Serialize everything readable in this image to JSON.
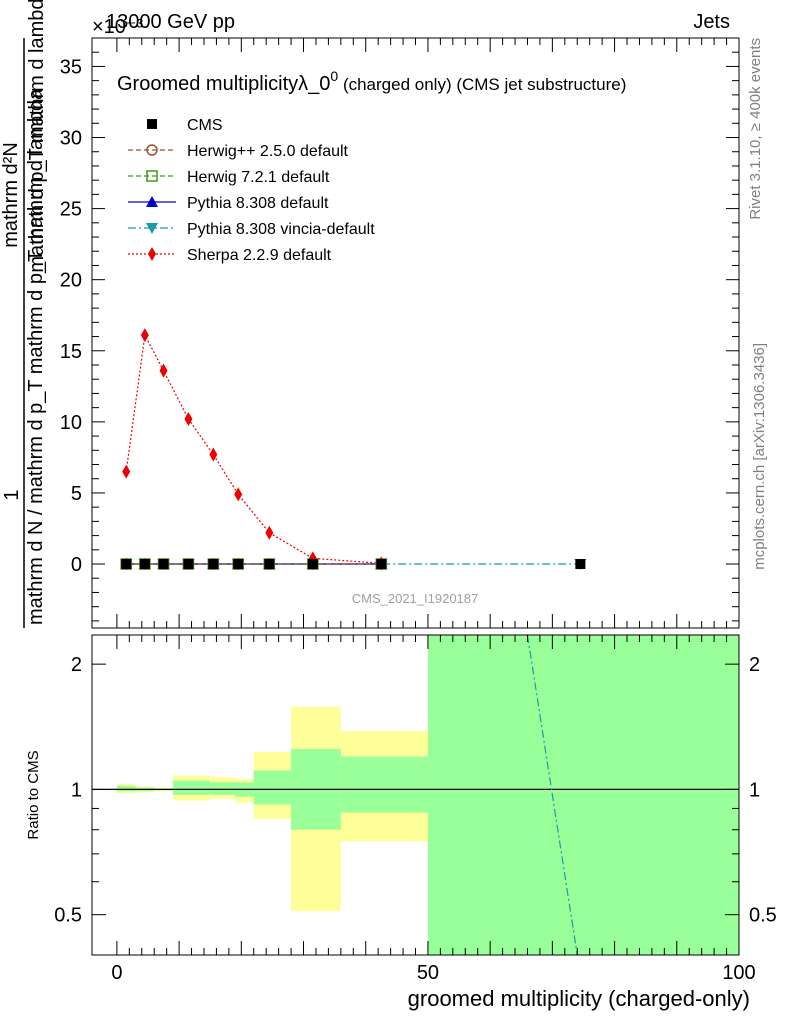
{
  "header": {
    "left": "13000 GeV pp",
    "right": "Jets",
    "exponent_label": "×10⁻³"
  },
  "side_text": {
    "top": "Rivet 3.1.10, ≥ 400k events",
    "bottom": "mcplots.cern.ch [arXiv:1306.3436]"
  },
  "colors": {
    "cms": "#000000",
    "herwigpp": "#a0522d",
    "herwig7": "#3a9a1a",
    "pythia": "#0000cc",
    "vincia": "#1a9aaa",
    "sherpa": "#ee0000",
    "band_yellow": "#ffff99",
    "band_green": "#99ff99"
  },
  "chart_data": [
    {
      "type": "line",
      "title": "Groomed multiplicity λ_0⁰ (charged only) (CMS jet substructure)",
      "title_main": "Groomed multiplicityλ_0",
      "title_sup": "0",
      "title_tail": " (charged only) (CMS jet substructure)",
      "ylabel_line1": "1",
      "ylabel_line2": "mathrm d N / mathrm d p_T mathrm d p_T mathrm d lambda",
      "ylabel_numerator": "mathrm d²N",
      "ylabel_denominator": "mathrm d p_T mathrm d lambda",
      "yscale_note": "×10⁻³",
      "ylim": [
        -4.5,
        37
      ],
      "yticks": [
        0,
        5,
        10,
        15,
        20,
        25,
        30,
        35
      ],
      "xlim": [
        -4,
        100
      ],
      "watermark": "CMS_2021_I1920187",
      "legend_position": "top-left",
      "series": [
        {
          "name": "CMS",
          "style": "cms",
          "x": [
            1.5,
            4.5,
            7.5,
            11.5,
            15.5,
            19.5,
            24.5,
            31.5,
            42.5,
            74.5
          ],
          "y": [
            0,
            0,
            0,
            0,
            0,
            0,
            0,
            0,
            0,
            0
          ]
        },
        {
          "name": "Herwig++ 2.5.0 default",
          "style": "herwigpp",
          "x": [
            1.5,
            4.5,
            7.5,
            11.5,
            15.5,
            19.5,
            24.5,
            31.5,
            42.5
          ],
          "y": [
            0,
            0,
            0,
            0,
            0,
            0,
            0,
            0,
            0
          ]
        },
        {
          "name": "Herwig 7.2.1 default",
          "style": "herwig7",
          "x": [
            1.5,
            4.5,
            7.5,
            11.5,
            15.5,
            19.5,
            24.5,
            31.5,
            42.5
          ],
          "y": [
            0,
            0,
            0,
            0,
            0,
            0,
            0,
            0,
            0
          ]
        },
        {
          "name": "Pythia 8.308 default",
          "style": "pythia",
          "x": [
            1.5,
            4.5,
            7.5,
            11.5,
            15.5,
            19.5,
            24.5,
            31.5,
            42.5
          ],
          "y": [
            0,
            0,
            0,
            0,
            0,
            0,
            0,
            0,
            0
          ]
        },
        {
          "name": "Pythia 8.308 vincia-default",
          "style": "vincia",
          "x": [
            1.5,
            4.5,
            7.5,
            11.5,
            15.5,
            19.5,
            24.5,
            31.5,
            42.5,
            74.5
          ],
          "y": [
            0,
            0,
            0,
            0,
            0,
            0,
            0,
            0,
            0,
            0
          ]
        },
        {
          "name": "Sherpa 2.2.9 default",
          "style": "sherpa",
          "x": [
            1.5,
            4.5,
            7.5,
            11.5,
            15.5,
            19.5,
            24.5,
            31.5,
            42.5
          ],
          "y": [
            6.5,
            16.1,
            13.6,
            10.2,
            7.7,
            4.9,
            2.2,
            0.4,
            0.05
          ]
        }
      ]
    },
    {
      "type": "area",
      "ylabel": "Ratio to CMS",
      "xlabel": "groomed multiplicity (charged-only)",
      "yscale": "log",
      "ylim": [
        0.4,
        2.35
      ],
      "yticks": [
        0.5,
        1,
        2
      ],
      "xlim": [
        -4,
        100
      ],
      "xticks": [
        0,
        50,
        100
      ],
      "bins": [
        {
          "x0": 0,
          "x1": 3,
          "yellow": [
            0.98,
            1.03
          ],
          "green": [
            0.99,
            1.02
          ]
        },
        {
          "x0": 3,
          "x1": 6,
          "yellow": [
            0.985,
            1.015
          ],
          "green": [
            0.99,
            1.01
          ]
        },
        {
          "x0": 6,
          "x1": 9,
          "yellow": [
            0.99,
            1.01
          ],
          "green": [
            0.995,
            1.005
          ]
        },
        {
          "x0": 9,
          "x1": 15,
          "yellow": [
            0.94,
            1.08
          ],
          "green": [
            0.97,
            1.05
          ]
        },
        {
          "x0": 15,
          "x1": 19,
          "yellow": [
            0.95,
            1.07
          ],
          "green": [
            0.97,
            1.04
          ]
        },
        {
          "x0": 19,
          "x1": 22,
          "yellow": [
            0.93,
            1.06
          ],
          "green": [
            0.96,
            1.04
          ]
        },
        {
          "x0": 22,
          "x1": 28,
          "yellow": [
            0.85,
            1.23
          ],
          "green": [
            0.92,
            1.11
          ]
        },
        {
          "x0": 28,
          "x1": 36,
          "yellow": [
            0.51,
            1.58
          ],
          "green": [
            0.8,
            1.25
          ]
        },
        {
          "x0": 36,
          "x1": 50,
          "yellow": [
            0.75,
            1.38
          ],
          "green": [
            0.88,
            1.2
          ]
        },
        {
          "x0": 50,
          "x1": 100,
          "yellow": [
            0.3,
            3.0
          ],
          "green": [
            0.3,
            3.0
          ]
        }
      ],
      "series": [
        {
          "name": "Pythia 8.308 vincia-default",
          "style": "vincia",
          "x": [
            66,
            74
          ],
          "y": [
            2.4,
            0.38
          ]
        }
      ]
    }
  ]
}
